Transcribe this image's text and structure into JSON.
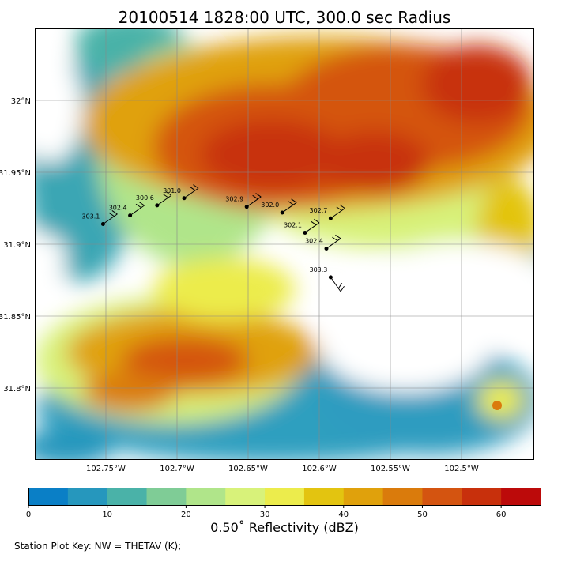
{
  "title": "20100514 1828:00 UTC, 300.0 sec Radius",
  "map": {
    "lon_labels": [
      "102.75°W",
      "102.7°W",
      "102.65°W",
      "102.6°W",
      "102.55°W",
      "102.5°W"
    ],
    "lat_labels": [
      "32°N",
      "31.95°N",
      "31.9°N",
      "31.85°N",
      "31.8°N"
    ]
  },
  "stations": [
    {
      "value": "303.1",
      "lon": -102.752,
      "lat": 31.914
    },
    {
      "value": "302.4",
      "lon": -102.733,
      "lat": 31.92
    },
    {
      "value": "300.6",
      "lon": -102.714,
      "lat": 31.927
    },
    {
      "value": "301.0",
      "lon": -102.695,
      "lat": 31.932
    },
    {
      "value": "302.9",
      "lon": -102.651,
      "lat": 31.926
    },
    {
      "value": "302.0",
      "lon": -102.626,
      "lat": 31.922
    },
    {
      "value": "302.7",
      "lon": -102.592,
      "lat": 31.918
    },
    {
      "value": "302.1",
      "lon": -102.61,
      "lat": 31.908
    },
    {
      "value": "302.4",
      "lon": -102.595,
      "lat": 31.897
    },
    {
      "value": "303.3",
      "lon": -102.592,
      "lat": 31.877
    }
  ],
  "colorbar": {
    "label": "0.50˚ Reflectivity (dBZ)",
    "ticks": [
      "0",
      "10",
      "20",
      "30",
      "40",
      "50",
      "60"
    ],
    "colors": [
      "#0a7fc6",
      "#2697bd",
      "#4ab2a8",
      "#7fcc96",
      "#b0e58a",
      "#d8f27a",
      "#ecec4c",
      "#e3c410",
      "#e0a10c",
      "#da7b0c",
      "#d45410",
      "#c8300c",
      "#bc0a0a"
    ]
  },
  "key": "Station Plot Key: NW = THETAV (K);"
}
